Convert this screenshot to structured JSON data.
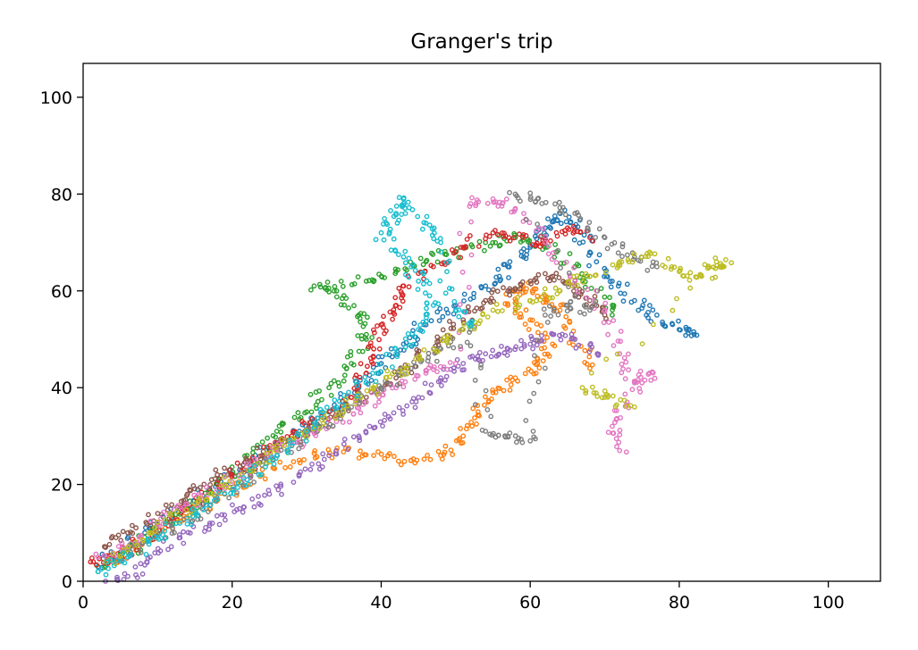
{
  "chart_data": {
    "type": "scatter",
    "title": "Granger's trip",
    "xlabel": "",
    "ylabel": "",
    "xlim": [
      0,
      107
    ],
    "ylim": [
      0,
      107
    ],
    "xticks": [
      0,
      20,
      40,
      60,
      80,
      100
    ],
    "yticks": [
      0,
      20,
      40,
      60,
      80,
      100
    ],
    "grid": false,
    "marker": "hollow-circle",
    "series_colors": [
      "#1f77b4",
      "#ff7f0e",
      "#2ca02c",
      "#d62728",
      "#9467bd",
      "#8c564b",
      "#e377c2",
      "#7f7f7f",
      "#bcbd22",
      "#17becf"
    ],
    "series": [
      {
        "color": "#1f77b4",
        "points": [
          [
            2,
            3
          ],
          [
            5,
            6
          ],
          [
            9,
            11
          ],
          [
            13,
            15
          ],
          [
            17,
            19
          ],
          [
            21,
            23
          ],
          [
            25,
            27
          ],
          [
            29,
            31
          ],
          [
            33,
            35
          ],
          [
            37,
            40
          ],
          [
            40,
            45
          ],
          [
            43,
            49
          ],
          [
            46,
            53
          ],
          [
            50,
            57
          ],
          [
            54,
            61
          ],
          [
            57,
            65
          ],
          [
            60,
            69
          ],
          [
            62,
            73
          ],
          [
            64,
            76
          ],
          [
            66,
            73
          ],
          [
            68,
            68
          ],
          [
            71,
            62
          ],
          [
            74,
            58
          ],
          [
            77,
            55
          ],
          [
            80,
            52
          ],
          [
            82,
            51
          ]
        ]
      },
      {
        "color": "#ff7f0e",
        "points": [
          [
            3,
            3
          ],
          [
            7,
            7
          ],
          [
            11,
            11
          ],
          [
            15,
            14
          ],
          [
            19,
            18
          ],
          [
            24,
            22
          ],
          [
            29,
            25
          ],
          [
            34,
            27
          ],
          [
            39,
            26
          ],
          [
            44,
            25
          ],
          [
            48,
            26
          ],
          [
            51,
            30
          ],
          [
            53,
            35
          ],
          [
            55,
            39
          ],
          [
            58,
            42
          ],
          [
            61,
            45
          ],
          [
            63,
            49
          ],
          [
            60,
            54
          ],
          [
            57,
            57
          ],
          [
            59,
            61
          ],
          [
            62,
            59
          ],
          [
            64,
            56
          ],
          [
            66,
            50
          ],
          [
            68,
            44
          ]
        ]
      },
      {
        "color": "#2ca02c",
        "points": [
          [
            2,
            2
          ],
          [
            6,
            6
          ],
          [
            10,
            10
          ],
          [
            14,
            15
          ],
          [
            18,
            20
          ],
          [
            22,
            26
          ],
          [
            26,
            31
          ],
          [
            30,
            35
          ],
          [
            33,
            40
          ],
          [
            36,
            45
          ],
          [
            38,
            50
          ],
          [
            37,
            55
          ],
          [
            35,
            59
          ],
          [
            31,
            61
          ],
          [
            38,
            62
          ],
          [
            42,
            64
          ],
          [
            46,
            66
          ],
          [
            50,
            68
          ],
          [
            54,
            70
          ],
          [
            58,
            71
          ],
          [
            62,
            69
          ],
          [
            66,
            65
          ],
          [
            69,
            60
          ],
          [
            71,
            55
          ]
        ]
      },
      {
        "color": "#d62728",
        "points": [
          [
            1,
            4
          ],
          [
            4,
            5
          ],
          [
            8,
            8
          ],
          [
            12,
            13
          ],
          [
            16,
            17
          ],
          [
            20,
            22
          ],
          [
            24,
            26
          ],
          [
            28,
            30
          ],
          [
            32,
            34
          ],
          [
            36,
            38
          ],
          [
            38,
            43
          ],
          [
            39,
            48
          ],
          [
            40,
            53
          ],
          [
            42,
            57
          ],
          [
            43,
            61
          ],
          [
            47,
            65
          ],
          [
            51,
            69
          ],
          [
            55,
            72
          ],
          [
            59,
            71
          ],
          [
            62,
            70
          ],
          [
            65,
            73
          ],
          [
            68,
            71
          ]
        ]
      },
      {
        "color": "#9467bd",
        "points": [
          [
            3,
            0
          ],
          [
            6,
            1
          ],
          [
            9,
            5
          ],
          [
            13,
            9
          ],
          [
            17,
            12
          ],
          [
            21,
            15
          ],
          [
            25,
            18
          ],
          [
            29,
            22
          ],
          [
            33,
            26
          ],
          [
            37,
            30
          ],
          [
            41,
            34
          ],
          [
            45,
            38
          ],
          [
            48,
            42
          ],
          [
            51,
            45
          ],
          [
            54,
            47
          ],
          [
            57,
            48
          ],
          [
            60,
            49
          ],
          [
            63,
            51
          ],
          [
            66,
            50
          ],
          [
            69,
            47
          ]
        ]
      },
      {
        "color": "#8c564b",
        "points": [
          [
            3,
            7
          ],
          [
            6,
            10
          ],
          [
            10,
            14
          ],
          [
            14,
            18
          ],
          [
            18,
            22
          ],
          [
            22,
            25
          ],
          [
            26,
            28
          ],
          [
            30,
            31
          ],
          [
            34,
            35
          ],
          [
            38,
            38
          ],
          [
            42,
            42
          ],
          [
            45,
            46
          ],
          [
            48,
            50
          ],
          [
            51,
            54
          ],
          [
            54,
            58
          ],
          [
            57,
            60
          ],
          [
            60,
            62
          ],
          [
            63,
            63
          ],
          [
            66,
            61
          ],
          [
            68,
            58
          ],
          [
            70,
            55
          ]
        ]
      },
      {
        "color": "#e377c2",
        "points": [
          [
            2,
            5
          ],
          [
            6,
            7
          ],
          [
            10,
            12
          ],
          [
            14,
            16
          ],
          [
            18,
            19
          ],
          [
            22,
            23
          ],
          [
            26,
            27
          ],
          [
            30,
            30
          ],
          [
            34,
            33
          ],
          [
            38,
            37
          ],
          [
            42,
            40
          ],
          [
            46,
            43
          ],
          [
            50,
            45
          ],
          [
            52,
            78
          ],
          [
            55,
            79
          ],
          [
            58,
            77
          ],
          [
            62,
            70
          ],
          [
            66,
            62
          ],
          [
            70,
            56
          ],
          [
            72,
            47
          ],
          [
            74,
            41
          ],
          [
            76,
            43
          ],
          [
            73,
            37
          ],
          [
            71,
            32
          ],
          [
            72,
            27
          ]
        ]
      },
      {
        "color": "#7f7f7f",
        "points": [
          [
            4,
            4
          ],
          [
            8,
            8
          ],
          [
            12,
            11
          ],
          [
            16,
            15
          ],
          [
            20,
            19
          ],
          [
            24,
            24
          ],
          [
            28,
            28
          ],
          [
            32,
            32
          ],
          [
            36,
            36
          ],
          [
            40,
            40
          ],
          [
            44,
            44
          ],
          [
            48,
            48
          ],
          [
            52,
            52
          ],
          [
            54,
            31
          ],
          [
            57,
            30
          ],
          [
            60,
            29
          ],
          [
            62,
            55
          ],
          [
            65,
            57
          ],
          [
            68,
            56
          ],
          [
            58,
            80
          ],
          [
            61,
            79
          ],
          [
            66,
            76
          ],
          [
            70,
            71
          ],
          [
            74,
            67
          ],
          [
            77,
            65
          ]
        ]
      },
      {
        "color": "#bcbd22",
        "points": [
          [
            3,
            4
          ],
          [
            7,
            8
          ],
          [
            11,
            12
          ],
          [
            15,
            16
          ],
          [
            19,
            20
          ],
          [
            23,
            24
          ],
          [
            27,
            28
          ],
          [
            31,
            32
          ],
          [
            35,
            36
          ],
          [
            39,
            40
          ],
          [
            43,
            44
          ],
          [
            47,
            48
          ],
          [
            51,
            52
          ],
          [
            55,
            56
          ],
          [
            60,
            58
          ],
          [
            64,
            60
          ],
          [
            68,
            63
          ],
          [
            72,
            66
          ],
          [
            76,
            68
          ],
          [
            80,
            64
          ],
          [
            83,
            63
          ],
          [
            85,
            66
          ],
          [
            86,
            65
          ],
          [
            67,
            40
          ],
          [
            70,
            38
          ],
          [
            74,
            36
          ]
        ]
      },
      {
        "color": "#17becf",
        "points": [
          [
            2,
            2
          ],
          [
            6,
            5
          ],
          [
            10,
            9
          ],
          [
            14,
            13
          ],
          [
            18,
            17
          ],
          [
            22,
            21
          ],
          [
            26,
            26
          ],
          [
            30,
            31
          ],
          [
            34,
            36
          ],
          [
            38,
            41
          ],
          [
            42,
            47
          ],
          [
            45,
            52
          ],
          [
            47,
            57
          ],
          [
            45,
            62
          ],
          [
            43,
            67
          ],
          [
            40,
            72
          ],
          [
            42,
            76
          ],
          [
            43,
            79
          ],
          [
            46,
            74
          ],
          [
            48,
            70
          ],
          [
            50,
            56
          ],
          [
            52,
            53
          ]
        ]
      }
    ]
  }
}
